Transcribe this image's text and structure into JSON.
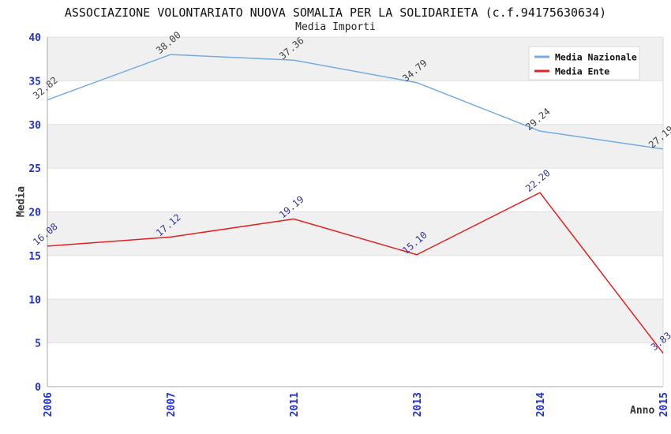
{
  "title": "ASSOCIAZIONE VOLONTARIATO NUOVA SOMALIA PER LA SOLIDARIETA (c.f.94175630634)",
  "subtitle": "Media Importi",
  "chart_data": {
    "type": "line",
    "categories": [
      "2006",
      "2007",
      "2011",
      "2013",
      "2014",
      "2015"
    ],
    "series": [
      {
        "name": "Media Nazionale",
        "values": [
          32.82,
          38.0,
          37.36,
          34.79,
          29.24,
          27.19
        ],
        "labels": [
          "32.82",
          "38.00",
          "37.36",
          "34.79",
          "29.24",
          "27.19"
        ],
        "color": "#74abe2",
        "label_color": "#404040"
      },
      {
        "name": "Media Ente",
        "values": [
          16.08,
          17.12,
          19.19,
          15.1,
          22.2,
          3.83
        ],
        "labels": [
          "16.08",
          "17.12",
          "19.19",
          "15.10",
          "22.20",
          "3.83"
        ],
        "color": "#e02222",
        "label_color": "#333399"
      }
    ],
    "xlabel": "Anno",
    "ylabel": "Media",
    "ylim": [
      0,
      40
    ],
    "ytick_step": 5,
    "ytick_labels": [
      "0",
      "5",
      "10",
      "15",
      "20",
      "25",
      "30",
      "35",
      "40"
    ],
    "grid": true,
    "legend_position": "top-right",
    "colors": {
      "tick_label": "#2233cc",
      "band_gray": "#f0f0f0",
      "band_white": "#ffffff",
      "gridline": "#e0e0e0",
      "axis_line": "#aaaaaa",
      "plot_right_edge": "#d8d8d8",
      "legend_border": "#d8d8d8",
      "legend_bg": "#ffffff",
      "legend_text": "#111111"
    }
  }
}
